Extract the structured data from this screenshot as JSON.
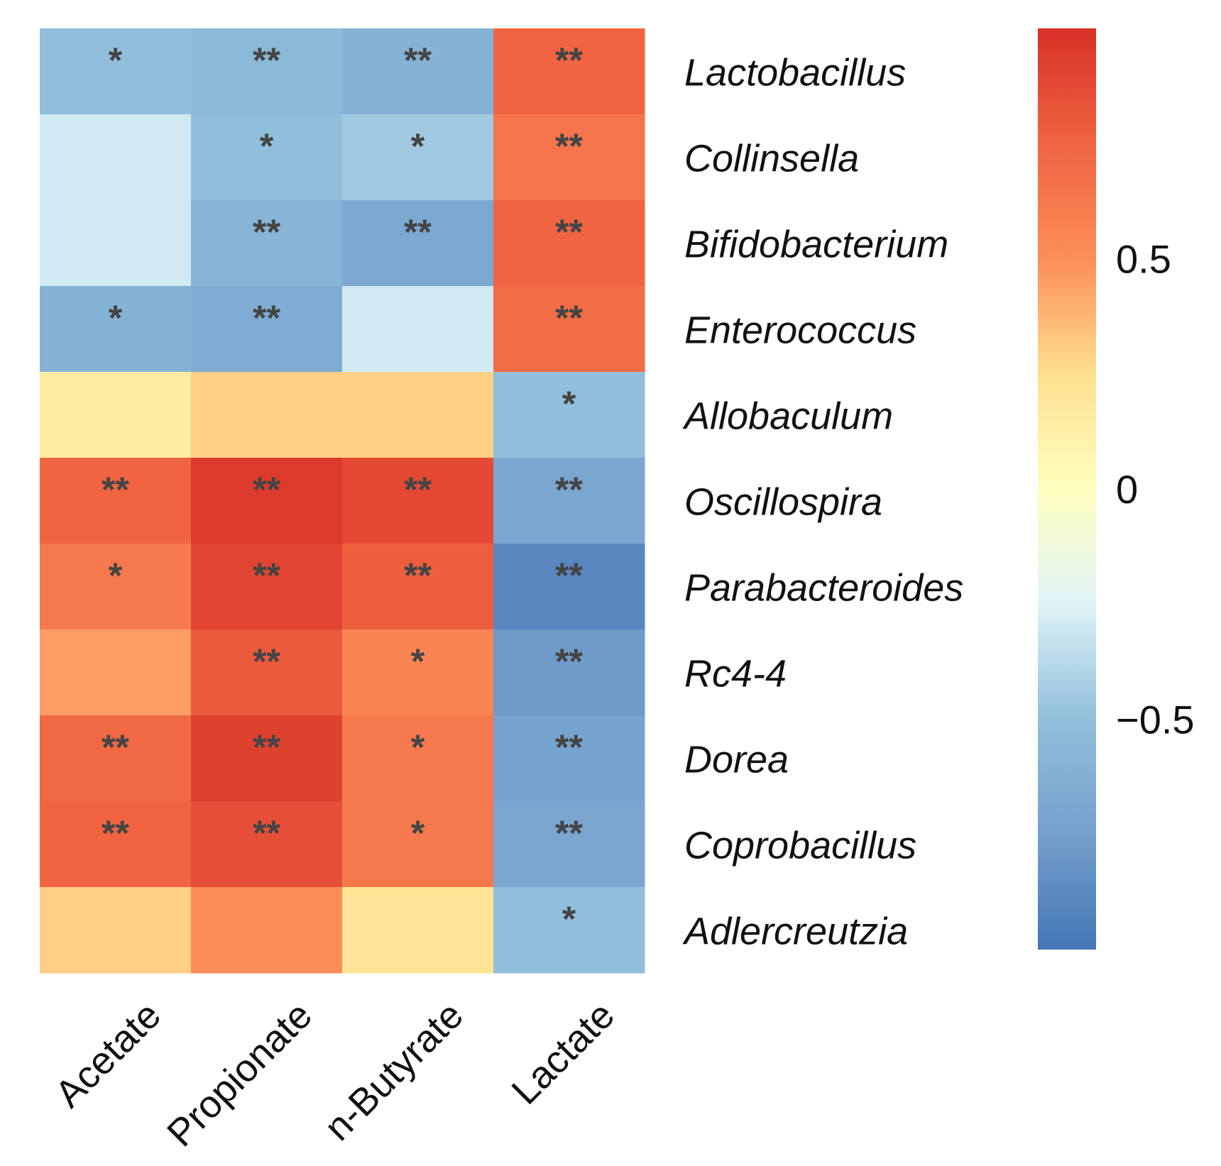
{
  "chart_data": {
    "type": "heatmap",
    "columns": [
      "Acetate",
      "Propionate",
      "n-Butyrate",
      "Lactate"
    ],
    "rows": [
      "Lactobacillus",
      "Collinsella",
      "Bifidobacterium",
      "Enterococcus",
      "Allobaculum",
      "Oscillospira",
      "Parabacteroides",
      "Rc4-4",
      "Dorea",
      "Coprobacillus",
      "Adlercreutzia"
    ],
    "values": [
      [
        -0.5,
        -0.55,
        -0.6,
        0.75
      ],
      [
        -0.3,
        -0.5,
        -0.45,
        0.65
      ],
      [
        -0.3,
        -0.58,
        -0.68,
        0.75
      ],
      [
        -0.6,
        -0.65,
        -0.3,
        0.7
      ],
      [
        0.15,
        0.3,
        0.3,
        -0.5
      ],
      [
        0.75,
        0.95,
        0.88,
        -0.7
      ],
      [
        0.62,
        0.9,
        0.78,
        -0.9
      ],
      [
        0.45,
        0.8,
        0.55,
        -0.78
      ],
      [
        0.72,
        0.92,
        0.62,
        -0.72
      ],
      [
        0.75,
        0.85,
        0.62,
        -0.7
      ],
      [
        0.3,
        0.5,
        0.22,
        -0.5
      ]
    ],
    "significance": [
      [
        "*",
        "**",
        "**",
        "**"
      ],
      [
        "",
        "*",
        "*",
        "**"
      ],
      [
        "",
        "**",
        "**",
        "**"
      ],
      [
        "*",
        "**",
        "",
        "**"
      ],
      [
        "",
        "",
        "",
        "*"
      ],
      [
        "**",
        "**",
        "**",
        "**"
      ],
      [
        "*",
        "**",
        "**",
        "**"
      ],
      [
        "",
        "**",
        "*",
        "**"
      ],
      [
        "**",
        "**",
        "*",
        "**"
      ],
      [
        "**",
        "**",
        "*",
        "**"
      ],
      [
        "",
        "",
        "",
        "*"
      ]
    ],
    "colorbar": {
      "ticks": [
        0.5,
        0,
        -0.5
      ],
      "tick_labels": [
        "0.5",
        "0",
        "−0.5"
      ],
      "range": [
        -1,
        1
      ],
      "low_color": "#4575b4",
      "mid_color": "#ffffbf",
      "high_color": "#d73027"
    }
  }
}
